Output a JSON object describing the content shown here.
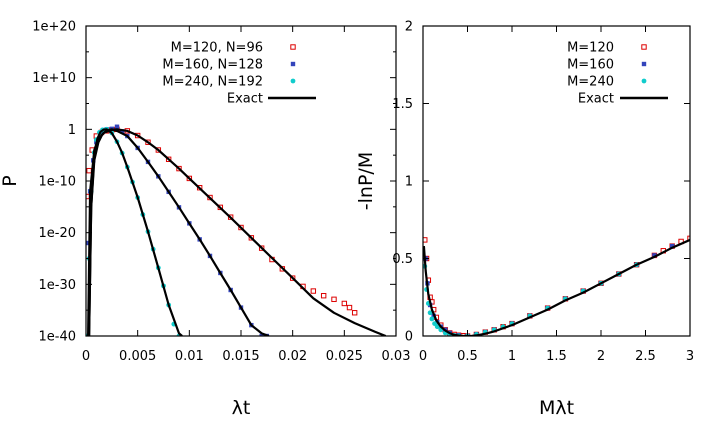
{
  "chart_data": [
    {
      "type": "scatter",
      "xlabel": "λt",
      "ylabel": "P",
      "xlim": [
        0,
        0.03
      ],
      "ylim_log10": [
        -40,
        20
      ],
      "y_scale": "log",
      "xticks": [
        0,
        0.005,
        0.01,
        0.015,
        0.02,
        0.025,
        0.03
      ],
      "xtick_labels": [
        "0",
        "0.005",
        "0.01",
        "0.015",
        "0.02",
        "0.025",
        "0.03"
      ],
      "yticks_log10": [
        20,
        10,
        0,
        -10,
        -20,
        -30,
        -40
      ],
      "ytick_labels": [
        "1e+20",
        "1e+10",
        "1",
        "1e-10",
        "1e-20",
        "1e-30",
        "1e-40"
      ],
      "legend_position": "top-right",
      "series": [
        {
          "name": "M=120, N=96",
          "color": "#dd0000",
          "marker": "open-square",
          "exact": false,
          "x": [
            0.0001,
            0.0003,
            0.0006,
            0.001,
            0.0015,
            0.002,
            0.0025,
            0.003,
            0.004,
            0.005,
            0.006,
            0.007,
            0.008,
            0.009,
            0.01,
            0.011,
            0.012,
            0.013,
            0.014,
            0.015,
            0.016,
            0.017,
            0.018,
            0.019,
            0.02,
            0.021,
            0.022,
            0.023,
            0.024,
            0.025,
            0.0255,
            0.026
          ],
          "logy": [
            -13,
            -8,
            -4,
            -1.3,
            -0.6,
            -0.3,
            -0.1,
            0,
            -0.3,
            -1.2,
            -2.5,
            -4.0,
            -5.8,
            -7.6,
            -9.5,
            -11.3,
            -13.2,
            -15.1,
            -17.0,
            -19.0,
            -21.0,
            -23.0,
            -25.2,
            -27.0,
            -28.8,
            -30.4,
            -31.3,
            -32.2,
            -32.9,
            -33.7,
            -34.5,
            -35.5
          ]
        },
        {
          "name": "M=160, N=128",
          "color": "#3344bb",
          "marker": "filled-square",
          "exact": false,
          "x": [
            0.0002,
            0.0004,
            0.0007,
            0.001,
            0.0015,
            0.002,
            0.0025,
            0.003,
            0.0035,
            0.004,
            0.005,
            0.006,
            0.007,
            0.008,
            0.009,
            0.01,
            0.011,
            0.012,
            0.013,
            0.014,
            0.015,
            0.016,
            0.017,
            0.0175
          ],
          "logy": [
            -22,
            -12,
            -6,
            -2.5,
            -0.6,
            0,
            0.1,
            0.5,
            -0.4,
            -1.3,
            -3.6,
            -6.3,
            -9.1,
            -12.1,
            -15.1,
            -18.2,
            -21.3,
            -24.5,
            -27.8,
            -31.1,
            -34.5,
            -37.9,
            -40,
            -40
          ]
        },
        {
          "name": "M=240, N=192",
          "color": "#11cccc",
          "marker": "filled-circle",
          "exact": false,
          "x": [
            0.0001,
            0.0003,
            0.0005,
            0.0008,
            0.001,
            0.0013,
            0.0016,
            0.002,
            0.0025,
            0.003,
            0.0035,
            0.004,
            0.0045,
            0.005,
            0.0055,
            0.006,
            0.0065,
            0.007,
            0.0075,
            0.008,
            0.0085,
            0.009
          ],
          "logy": [
            -40,
            -25,
            -12,
            -4.5,
            -2,
            -0.6,
            -0.1,
            0,
            -0.7,
            -2.4,
            -4.6,
            -7.3,
            -10.2,
            -13.2,
            -16.5,
            -19.8,
            -23.2,
            -26.8,
            -30.3,
            -34,
            -37.7,
            -40
          ]
        },
        {
          "name": "Exact",
          "color": "#000000",
          "marker": "line",
          "exact": true,
          "curves": [
            {
              "x": [
                0.0002,
                0.0004,
                0.0008,
                0.0012,
                0.0018,
                0.0025,
                0.003,
                0.004,
                0.005,
                0.006,
                0.007,
                0.008,
                0.009,
                0.01,
                0.012,
                0.014,
                0.016,
                0.018,
                0.02,
                0.022,
                0.024,
                0.026,
                0.028,
                0.029
              ],
              "logy": [
                -40,
                -12,
                -4,
                -1.8,
                -0.6,
                -0.1,
                0,
                -0.3,
                -1.2,
                -2.5,
                -4.0,
                -5.8,
                -7.6,
                -9.5,
                -13.3,
                -17.1,
                -21.0,
                -24.9,
                -28.8,
                -32.7,
                -35.5,
                -37.5,
                -39.2,
                -40
              ]
            },
            {
              "x": [
                0.0003,
                0.0005,
                0.0008,
                0.0012,
                0.0016,
                0.002,
                0.0025,
                0.003,
                0.004,
                0.005,
                0.006,
                0.007,
                0.008,
                0.009,
                0.01,
                0.011,
                0.012,
                0.013,
                0.014,
                0.015,
                0.016,
                0.017,
                0.0177
              ],
              "logy": [
                -40,
                -15,
                -6,
                -2.5,
                -0.9,
                -0.2,
                0,
                -0.3,
                -1.3,
                -3.6,
                -6.3,
                -9.1,
                -12.1,
                -15.1,
                -18.2,
                -21.3,
                -24.5,
                -27.8,
                -31.1,
                -34.5,
                -37.9,
                -39.5,
                -40
              ]
            },
            {
              "x": [
                0.0003,
                0.0005,
                0.0008,
                0.0011,
                0.0014,
                0.0017,
                0.002,
                0.0025,
                0.003,
                0.0035,
                0.004,
                0.005,
                0.006,
                0.007,
                0.008,
                0.009,
                0.0093
              ],
              "logy": [
                -40,
                -15,
                -5,
                -1.8,
                -0.5,
                -0.05,
                0,
                -0.7,
                -2.4,
                -4.6,
                -7.3,
                -13.2,
                -19.8,
                -26.8,
                -34,
                -39.5,
                -40
              ]
            }
          ]
        }
      ]
    },
    {
      "type": "scatter",
      "xlabel": "Mλt",
      "ylabel": "-lnP/M",
      "xlim": [
        0,
        3
      ],
      "ylim": [
        0,
        2
      ],
      "xticks": [
        0,
        0.5,
        1,
        1.5,
        2,
        2.5,
        3
      ],
      "xtick_labels": [
        "0",
        "0.5",
        "1",
        "1.5",
        "2",
        "2.5",
        "3"
      ],
      "yticks": [
        0,
        0.5,
        1,
        1.5,
        2
      ],
      "ytick_labels": [
        "0",
        "0.5",
        "1",
        "1.5",
        "2"
      ],
      "legend_position": "top-right",
      "series": [
        {
          "name": "M=120",
          "color": "#dd0000",
          "marker": "open-square",
          "exact": false,
          "x": [
            0.02,
            0.04,
            0.06,
            0.08,
            0.1,
            0.12,
            0.15,
            0.2,
            0.25,
            0.3,
            0.35,
            0.4,
            0.45,
            0.5,
            0.6,
            0.7,
            0.8,
            0.9,
            1.0,
            1.2,
            1.4,
            1.6,
            1.8,
            2.0,
            2.2,
            2.4,
            2.6,
            2.7,
            2.8,
            2.9,
            3.0
          ],
          "y": [
            0.62,
            0.5,
            0.36,
            0.25,
            0.22,
            0.17,
            0.12,
            0.07,
            0.04,
            0.02,
            0.01,
            0.005,
            0.002,
            0.0,
            0.01,
            0.025,
            0.04,
            0.06,
            0.08,
            0.13,
            0.18,
            0.24,
            0.29,
            0.34,
            0.4,
            0.46,
            0.52,
            0.55,
            0.58,
            0.61,
            0.63
          ]
        },
        {
          "name": "M=160",
          "color": "#3344bb",
          "marker": "filled-square",
          "exact": false,
          "x": [
            0.03,
            0.05,
            0.08,
            0.12,
            0.16,
            0.2,
            0.25,
            0.3,
            0.4,
            0.5,
            0.6,
            0.7,
            0.8,
            1.0,
            1.2,
            1.4,
            1.6,
            1.8,
            2.0,
            2.2,
            2.4,
            2.6,
            2.8
          ],
          "y": [
            0.5,
            0.34,
            0.2,
            0.13,
            0.09,
            0.06,
            0.04,
            0.02,
            0.005,
            0.0,
            0.01,
            0.025,
            0.04,
            0.08,
            0.13,
            0.18,
            0.24,
            0.29,
            0.34,
            0.4,
            0.46,
            0.52,
            0.58
          ]
        },
        {
          "name": "M=240",
          "color": "#11cccc",
          "marker": "filled-circle",
          "exact": false,
          "x": [
            0.02,
            0.04,
            0.06,
            0.08,
            0.1,
            0.13,
            0.16,
            0.2,
            0.25,
            0.3,
            0.35,
            0.4,
            0.5,
            0.6,
            0.7,
            0.8,
            0.9,
            1.0,
            1.2,
            1.4,
            1.6,
            1.8,
            2.0,
            2.2,
            2.4
          ],
          "y": [
            0.45,
            0.3,
            0.21,
            0.15,
            0.11,
            0.08,
            0.06,
            0.04,
            0.02,
            0.01,
            0.004,
            0.001,
            0.0,
            0.01,
            0.025,
            0.04,
            0.06,
            0.08,
            0.13,
            0.18,
            0.24,
            0.29,
            0.34,
            0.4,
            0.46
          ]
        },
        {
          "name": "Exact",
          "color": "#000000",
          "marker": "line",
          "exact": true,
          "curves": [
            {
              "x": [
                0.01,
                0.03,
                0.06,
                0.1,
                0.15,
                0.2,
                0.25,
                0.3,
                0.35,
                0.4,
                0.45,
                0.5,
                0.55,
                0.6,
                0.7,
                0.8,
                1.0,
                1.2,
                1.4,
                1.6,
                1.8,
                2.0,
                2.2,
                2.4,
                2.6,
                2.8,
                3.0
              ],
              "y": [
                0.58,
                0.42,
                0.27,
                0.17,
                0.1,
                0.06,
                0.035,
                0.018,
                0.008,
                0.003,
                0.0005,
                0.0,
                0.001,
                0.004,
                0.015,
                0.03,
                0.07,
                0.12,
                0.17,
                0.23,
                0.28,
                0.34,
                0.4,
                0.46,
                0.51,
                0.57,
                0.62
              ]
            }
          ]
        }
      ]
    }
  ]
}
